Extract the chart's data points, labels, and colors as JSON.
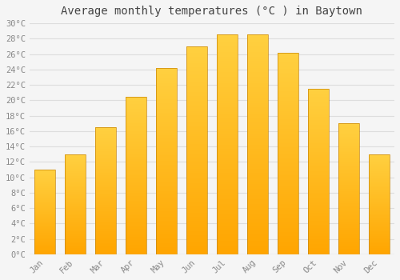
{
  "title": "Average monthly temperatures (°C ) in Baytown",
  "months": [
    "Jan",
    "Feb",
    "Mar",
    "Apr",
    "May",
    "Jun",
    "Jul",
    "Aug",
    "Sep",
    "Oct",
    "Nov",
    "Dec"
  ],
  "values": [
    11,
    13,
    16.5,
    20.5,
    24.2,
    27,
    28.5,
    28.5,
    26.2,
    21.5,
    17,
    13
  ],
  "bar_color_main": "#FFA500",
  "bar_color_light": "#FFD040",
  "bar_edge_color": "#C8860A",
  "background_color": "#F5F5F5",
  "grid_color": "#DDDDDD",
  "tick_label_color": "#888888",
  "title_color": "#444444",
  "ylim": [
    0,
    30
  ],
  "yticks": [
    0,
    2,
    4,
    6,
    8,
    10,
    12,
    14,
    16,
    18,
    20,
    22,
    24,
    26,
    28,
    30
  ],
  "ytick_labels": [
    "0°C",
    "2°C",
    "4°C",
    "6°C",
    "8°C",
    "10°C",
    "12°C",
    "14°C",
    "16°C",
    "18°C",
    "20°C",
    "22°C",
    "24°C",
    "26°C",
    "28°C",
    "30°C"
  ],
  "title_fontsize": 10,
  "tick_fontsize": 7.5,
  "bar_width": 0.7
}
